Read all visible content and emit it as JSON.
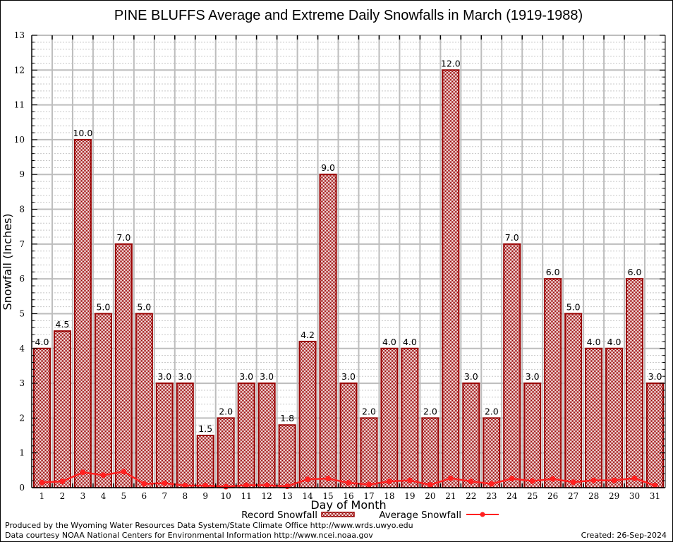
{
  "chart_data": {
    "type": "bar",
    "title": "PINE BLUFFS Average and Extreme Daily Snowfalls in March (1919-1988)",
    "xlabel": "Day of Month",
    "ylabel": "Snowfall (Inches)",
    "ylim": [
      0,
      13
    ],
    "yticks": [
      "0",
      "1",
      "2",
      "3",
      "4",
      "5",
      "6",
      "7",
      "8",
      "9",
      "10",
      "11",
      "12",
      "13"
    ],
    "grid": true,
    "categories": [
      "1",
      "2",
      "3",
      "4",
      "5",
      "6",
      "7",
      "8",
      "9",
      "10",
      "11",
      "12",
      "13",
      "14",
      "15",
      "16",
      "17",
      "18",
      "19",
      "20",
      "21",
      "22",
      "23",
      "24",
      "25",
      "26",
      "27",
      "28",
      "29",
      "30",
      "31"
    ],
    "series": [
      {
        "name": "Record Snowfall",
        "type": "bar",
        "color": "#990000",
        "values": [
          4.0,
          4.5,
          10.0,
          5.0,
          7.0,
          5.0,
          3.0,
          3.0,
          1.5,
          2.0,
          3.0,
          3.0,
          1.8,
          4.2,
          9.0,
          3.0,
          2.0,
          4.0,
          4.0,
          2.0,
          12.0,
          3.0,
          2.0,
          7.0,
          3.0,
          6.0,
          5.0,
          4.0,
          4.0,
          6.0,
          3.0
        ],
        "labels": [
          "4.0",
          "4.5",
          "10.0",
          "5.0",
          "7.0",
          "5.0",
          "3.0",
          "3.0",
          "1.5",
          "2.0",
          "3.0",
          "3.0",
          "1.8",
          "4.2",
          "9.0",
          "3.0",
          "2.0",
          "4.0",
          "4.0",
          "2.0",
          "12.0",
          "3.0",
          "2.0",
          "7.0",
          "3.0",
          "6.0",
          "5.0",
          "4.0",
          "4.0",
          "6.0",
          "3.0"
        ]
      },
      {
        "name": "Average Snowfall",
        "type": "line",
        "color": "#ff2020",
        "values": [
          0.15,
          0.18,
          0.44,
          0.36,
          0.46,
          0.11,
          0.13,
          0.06,
          0.06,
          0.03,
          0.07,
          0.07,
          0.04,
          0.24,
          0.26,
          0.14,
          0.09,
          0.18,
          0.21,
          0.08,
          0.27,
          0.18,
          0.11,
          0.26,
          0.19,
          0.25,
          0.16,
          0.21,
          0.21,
          0.27,
          0.06
        ]
      }
    ],
    "legend": {
      "position": "bottom-center",
      "items": [
        "Record Snowfall",
        "Average Snowfall"
      ]
    }
  },
  "footer": {
    "produced_by": "Produced by the Wyoming Water Resources Data System/State Climate Office http://www.wrds.uwyo.edu",
    "data_courtesy": "Data courtesy NOAA National Centers for Environmental Information http://www.ncei.noaa.gov",
    "created": "Created:  26-Sep-2024"
  }
}
